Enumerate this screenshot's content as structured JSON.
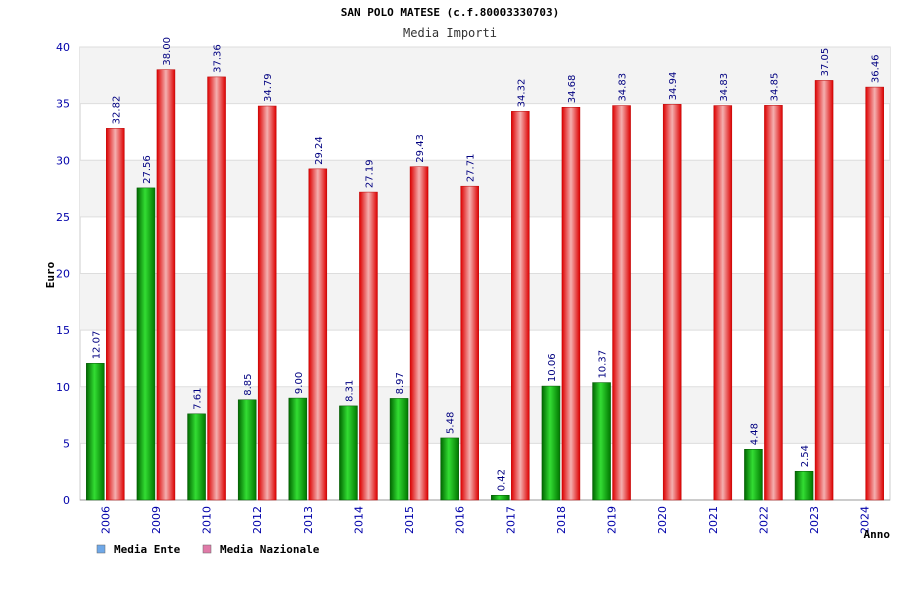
{
  "chart_data": {
    "type": "bar",
    "title": "SAN POLO MATESE (c.f.80003330703)",
    "subtitle": "Media Importi",
    "ylabel": "Euro",
    "xlabel": "Anno",
    "ylim": [
      0,
      40
    ],
    "yticks": [
      0,
      5,
      10,
      15,
      20,
      25,
      30,
      35,
      40
    ],
    "ytick_labels": [
      "0",
      "5",
      "10",
      "15",
      "20",
      "25",
      "30",
      "35",
      "40"
    ],
    "categories": [
      "2006",
      "2009",
      "2010",
      "2012",
      "2013",
      "2014",
      "2015",
      "2016",
      "2017",
      "2018",
      "2019",
      "2020",
      "2021",
      "2022",
      "2023",
      "2024"
    ],
    "legend_position": "bottom-left",
    "grid": true,
    "series": [
      {
        "name": "Media Ente",
        "color": "#00aa00",
        "legend_color": "#6fa8e8",
        "values": [
          12.07,
          27.56,
          7.61,
          8.85,
          9.0,
          8.31,
          8.97,
          5.48,
          0.42,
          10.06,
          10.37,
          null,
          null,
          4.48,
          2.54,
          null
        ],
        "labels": [
          "12.07",
          "27.56",
          "7.61",
          "8.85",
          "9.00",
          "8.31",
          "8.97",
          "5.48",
          "0.42",
          "10.06",
          "10.37",
          "",
          "",
          "4.48",
          "2.54",
          ""
        ]
      },
      {
        "name": "Media Nazionale",
        "color": "#ee1111",
        "legend_color": "#e07aa8",
        "values": [
          32.82,
          38.0,
          37.36,
          34.79,
          29.24,
          27.19,
          29.43,
          27.71,
          34.32,
          34.68,
          34.83,
          34.94,
          34.83,
          34.85,
          37.05,
          36.46
        ],
        "labels": [
          "32.82",
          "38.00",
          "37.36",
          "34.79",
          "29.24",
          "27.19",
          "29.43",
          "27.71",
          "34.32",
          "34.68",
          "34.83",
          "34.94",
          "34.83",
          "34.85",
          "37.05",
          "36.46"
        ]
      }
    ]
  }
}
